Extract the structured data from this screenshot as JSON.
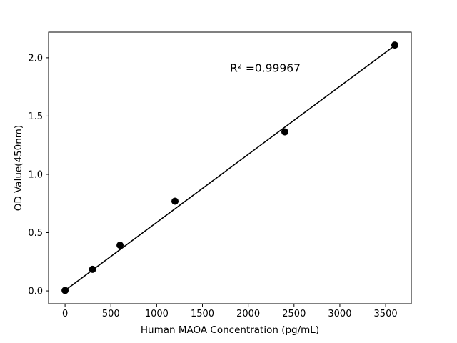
{
  "chart_data": {
    "type": "scatter",
    "title": "",
    "xlabel": "Human MAOA Concentration (pg/mL)",
    "ylabel": "OD Value(450nm)",
    "x": [
      0,
      300,
      600,
      1200,
      2400,
      3600
    ],
    "y": [
      0.004,
      0.185,
      0.392,
      0.77,
      1.364,
      2.109
    ],
    "fit_line": {
      "x": [
        0,
        3600
      ],
      "y": [
        0.004,
        2.105
      ]
    },
    "annotation": {
      "text": "R² =0.99967",
      "x": 1800,
      "y": 1.88
    },
    "xticks": [
      0,
      500,
      1000,
      1500,
      2000,
      2500,
      3000,
      3500
    ],
    "xtick_labels": [
      "0",
      "500",
      "1000",
      "1500",
      "2000",
      "2500",
      "3000",
      "3500"
    ],
    "yticks": [
      0.0,
      0.5,
      1.0,
      1.5,
      2.0
    ],
    "ytick_labels": [
      "0.0",
      "0.5",
      "1.0",
      "1.5",
      "2.0"
    ],
    "xlim": [
      -180,
      3780
    ],
    "ylim": [
      -0.11,
      2.22
    ],
    "grid": false,
    "legend": "none",
    "point_color": "#000000",
    "line_color": "#000000",
    "axis_color": "#000000",
    "background": "#ffffff"
  }
}
